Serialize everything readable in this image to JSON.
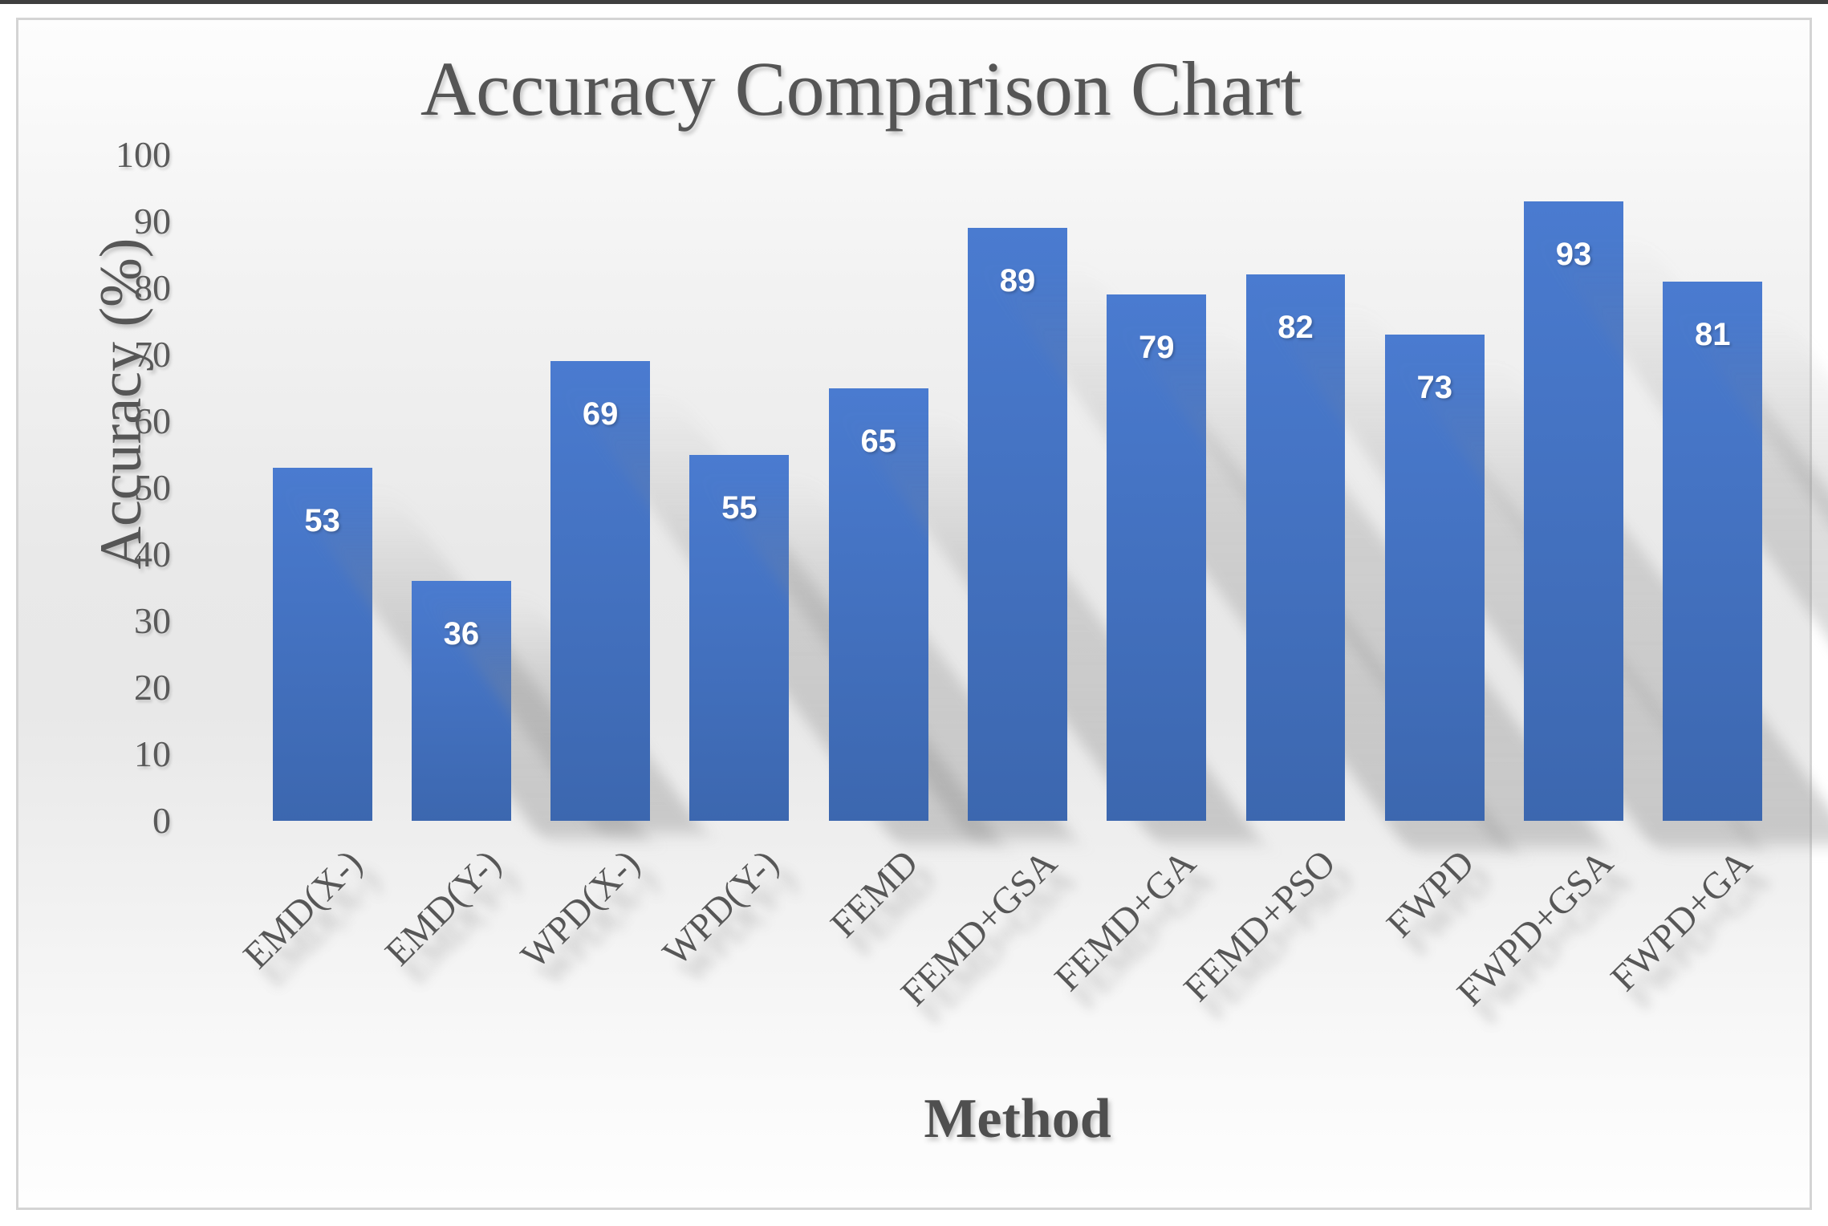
{
  "chart_data": {
    "type": "bar",
    "title": "Accuracy Comparison Chart",
    "xlabel": "Method",
    "ylabel": "Accuracy (%)",
    "categories": [
      "EMD(X-)",
      "EMD(Y-)",
      "WPD(X-)",
      "WPD(Y-)",
      "FEMD",
      "FEMD+GSA",
      "FEMD+GA",
      "FEMD+PSO",
      "FWPD",
      "FWPD+GSA",
      "FWPD+GA"
    ],
    "values": [
      53,
      36,
      69,
      55,
      65,
      89,
      79,
      82,
      73,
      93,
      81
    ],
    "ylim": [
      0,
      100
    ],
    "yticks": [
      0,
      10,
      20,
      30,
      40,
      50,
      60,
      70,
      80,
      90,
      100
    ],
    "grid": false,
    "legend": false,
    "bar_color": "#4472C4",
    "bar_gradient_top": "#4A7BD0",
    "bar_gradient_bottom": "#3C67AF",
    "value_label_color": "#FFFFFF",
    "text_color": "#595959",
    "background_color": "#EBEBEB",
    "border_color": "#D4D4D4"
  }
}
